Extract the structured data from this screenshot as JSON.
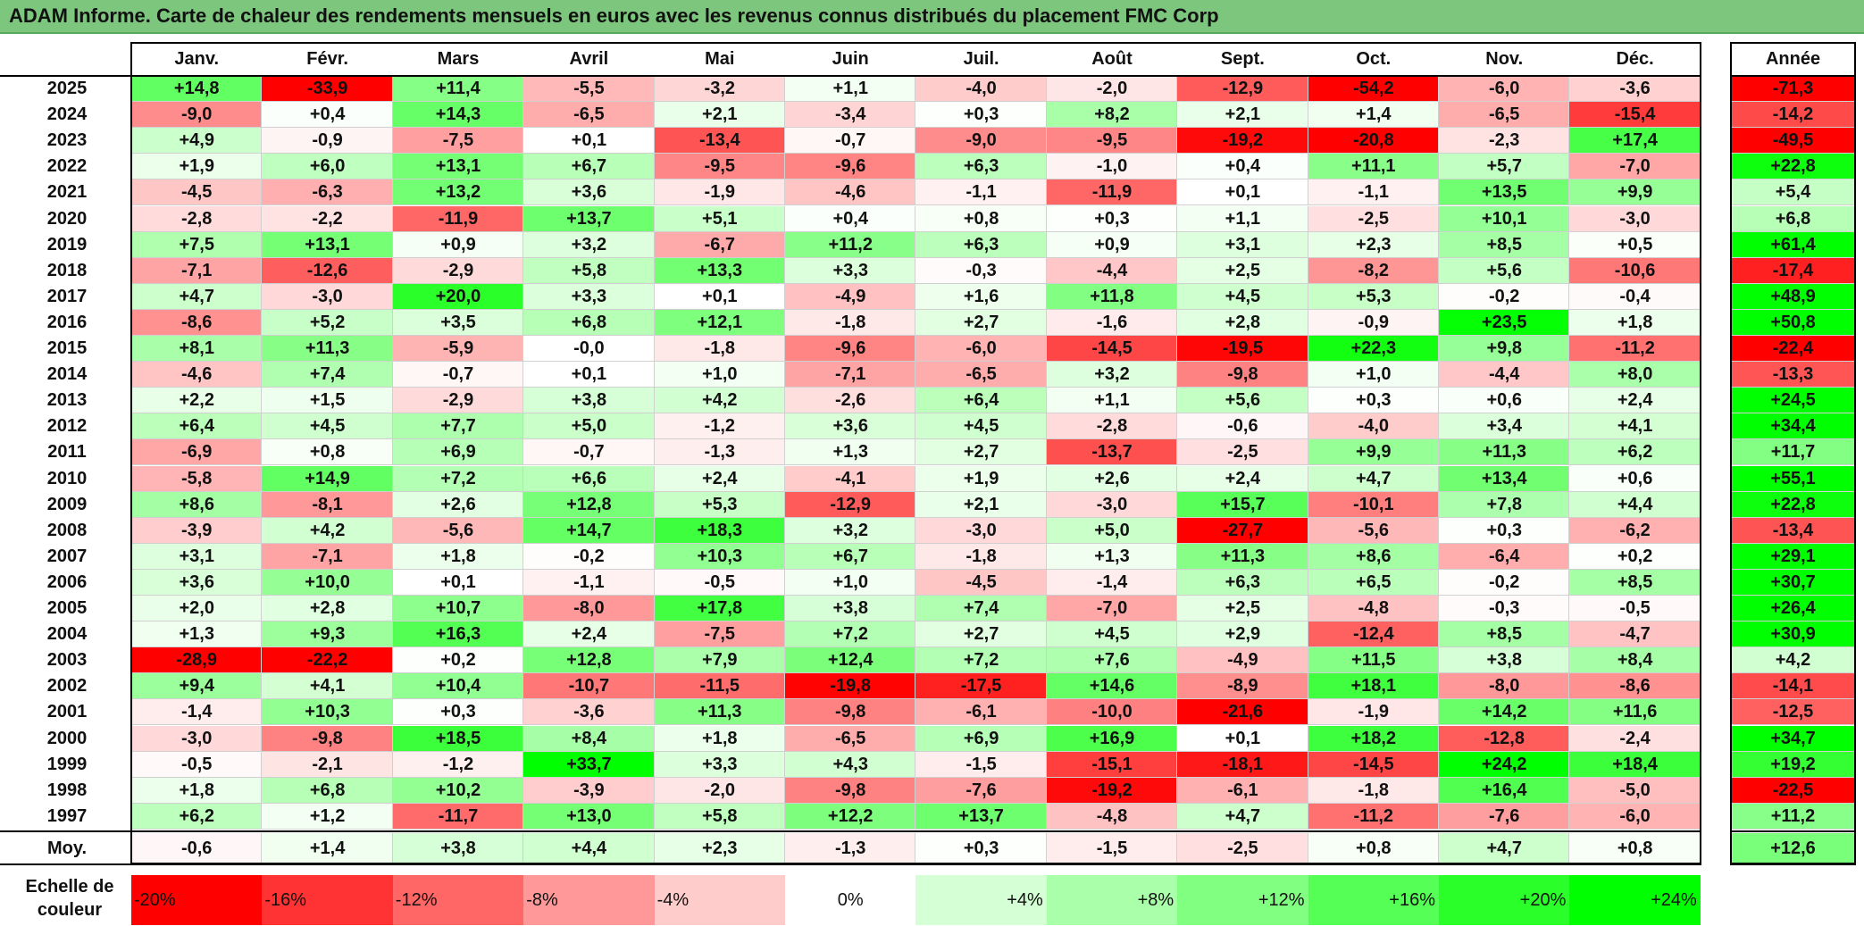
{
  "title": "ADAM Informe. Carte de chaleur des rendements mensuels en euros avec les revenus connus distribués du placement FMC Corp",
  "chart_data": {
    "type": "heatmap",
    "columns": [
      "Janv.",
      "Févr.",
      "Mars",
      "Avril",
      "Mai",
      "Juin",
      "Juil.",
      "Août",
      "Sept.",
      "Oct.",
      "Nov.",
      "Déc."
    ],
    "annual_header": "Année",
    "rows": [
      {
        "year": "2025",
        "values": [
          "+14,8",
          "-33,9",
          "+11,4",
          "-5,5",
          "-3,2",
          "+1,1",
          "-4,0",
          "-2,0",
          "-12,9",
          "-54,2",
          "-6,0",
          "-3,6"
        ],
        "annual": "-71,3"
      },
      {
        "year": "2024",
        "values": [
          "-9,0",
          "+0,4",
          "+14,3",
          "-6,5",
          "+2,1",
          "-3,4",
          "+0,3",
          "+8,2",
          "+2,1",
          "+1,4",
          "-6,5",
          "-15,4"
        ],
        "annual": "-14,2"
      },
      {
        "year": "2023",
        "values": [
          "+4,9",
          "-0,9",
          "-7,5",
          "+0,1",
          "-13,4",
          "-0,7",
          "-9,0",
          "-9,5",
          "-19,2",
          "-20,8",
          "-2,3",
          "+17,4"
        ],
        "annual": "-49,5"
      },
      {
        "year": "2022",
        "values": [
          "+1,9",
          "+6,0",
          "+13,1",
          "+6,7",
          "-9,5",
          "-9,6",
          "+6,3",
          "-1,0",
          "+0,4",
          "+11,1",
          "+5,7",
          "-7,0"
        ],
        "annual": "+22,8"
      },
      {
        "year": "2021",
        "values": [
          "-4,5",
          "-6,3",
          "+13,2",
          "+3,6",
          "-1,9",
          "-4,6",
          "-1,1",
          "-11,9",
          "+0,1",
          "-1,1",
          "+13,5",
          "+9,9"
        ],
        "annual": "+5,4"
      },
      {
        "year": "2020",
        "values": [
          "-2,8",
          "-2,2",
          "-11,9",
          "+13,7",
          "+5,1",
          "+0,4",
          "+0,8",
          "+0,3",
          "+1,1",
          "-2,5",
          "+10,1",
          "-3,0"
        ],
        "annual": "+6,8"
      },
      {
        "year": "2019",
        "values": [
          "+7,5",
          "+13,1",
          "+0,9",
          "+3,2",
          "-6,7",
          "+11,2",
          "+6,3",
          "+0,9",
          "+3,1",
          "+2,3",
          "+8,5",
          "+0,5"
        ],
        "annual": "+61,4"
      },
      {
        "year": "2018",
        "values": [
          "-7,1",
          "-12,6",
          "-2,9",
          "+5,8",
          "+13,3",
          "+3,3",
          "-0,3",
          "-4,4",
          "+2,5",
          "-8,2",
          "+5,6",
          "-10,6"
        ],
        "annual": "-17,4"
      },
      {
        "year": "2017",
        "values": [
          "+4,7",
          "-3,0",
          "+20,0",
          "+3,3",
          "+0,1",
          "-4,9",
          "+1,6",
          "+11,8",
          "+4,5",
          "+5,3",
          "-0,2",
          "-0,4"
        ],
        "annual": "+48,9"
      },
      {
        "year": "2016",
        "values": [
          "-8,6",
          "+5,2",
          "+3,5",
          "+6,8",
          "+12,1",
          "-1,8",
          "+2,7",
          "-1,6",
          "+2,8",
          "-0,9",
          "+23,5",
          "+1,8"
        ],
        "annual": "+50,8"
      },
      {
        "year": "2015",
        "values": [
          "+8,1",
          "+11,3",
          "-5,9",
          "-0,0",
          "-1,8",
          "-9,6",
          "-6,0",
          "-14,5",
          "-19,5",
          "+22,3",
          "+9,8",
          "-11,2"
        ],
        "annual": "-22,4"
      },
      {
        "year": "2014",
        "values": [
          "-4,6",
          "+7,4",
          "-0,7",
          "+0,1",
          "+1,0",
          "-7,1",
          "-6,5",
          "+3,2",
          "-9,8",
          "+1,0",
          "-4,4",
          "+8,0"
        ],
        "annual": "-13,3"
      },
      {
        "year": "2013",
        "values": [
          "+2,2",
          "+1,5",
          "-2,9",
          "+3,8",
          "+4,2",
          "-2,6",
          "+6,4",
          "+1,1",
          "+5,6",
          "+0,3",
          "+0,6",
          "+2,4"
        ],
        "annual": "+24,5"
      },
      {
        "year": "2012",
        "values": [
          "+6,4",
          "+4,5",
          "+7,7",
          "+5,0",
          "-1,2",
          "+3,6",
          "+4,5",
          "-2,8",
          "-0,6",
          "-4,0",
          "+3,4",
          "+4,1"
        ],
        "annual": "+34,4"
      },
      {
        "year": "2011",
        "values": [
          "-6,9",
          "+0,8",
          "+6,9",
          "-0,7",
          "-1,3",
          "+1,3",
          "+2,7",
          "-13,7",
          "-2,5",
          "+9,9",
          "+11,3",
          "+6,2"
        ],
        "annual": "+11,7"
      },
      {
        "year": "2010",
        "values": [
          "-5,8",
          "+14,9",
          "+7,2",
          "+6,6",
          "+2,4",
          "-4,1",
          "+1,9",
          "+2,6",
          "+2,4",
          "+4,7",
          "+13,4",
          "+0,6"
        ],
        "annual": "+55,1"
      },
      {
        "year": "2009",
        "values": [
          "+8,6",
          "-8,1",
          "+2,6",
          "+12,8",
          "+5,3",
          "-12,9",
          "+2,1",
          "-3,0",
          "+15,7",
          "-10,1",
          "+7,8",
          "+4,4"
        ],
        "annual": "+22,8"
      },
      {
        "year": "2008",
        "values": [
          "-3,9",
          "+4,2",
          "-5,6",
          "+14,7",
          "+18,3",
          "+3,2",
          "-3,0",
          "+5,0",
          "-27,7",
          "-5,6",
          "+0,3",
          "-6,2"
        ],
        "annual": "-13,4"
      },
      {
        "year": "2007",
        "values": [
          "+3,1",
          "-7,1",
          "+1,8",
          "-0,2",
          "+10,3",
          "+6,7",
          "-1,8",
          "+1,3",
          "+11,3",
          "+8,6",
          "-6,4",
          "+0,2"
        ],
        "annual": "+29,1"
      },
      {
        "year": "2006",
        "values": [
          "+3,6",
          "+10,0",
          "+0,1",
          "-1,1",
          "-0,5",
          "+1,0",
          "-4,5",
          "-1,4",
          "+6,3",
          "+6,5",
          "-0,2",
          "+8,5"
        ],
        "annual": "+30,7"
      },
      {
        "year": "2005",
        "values": [
          "+2,0",
          "+2,8",
          "+10,7",
          "-8,0",
          "+17,8",
          "+3,8",
          "+7,4",
          "-7,0",
          "+2,5",
          "-4,8",
          "-0,3",
          "-0,5"
        ],
        "annual": "+26,4"
      },
      {
        "year": "2004",
        "values": [
          "+1,3",
          "+9,3",
          "+16,3",
          "+2,4",
          "-7,5",
          "+7,2",
          "+2,7",
          "+4,5",
          "+2,9",
          "-12,4",
          "+8,5",
          "-4,7"
        ],
        "annual": "+30,9"
      },
      {
        "year": "2003",
        "values": [
          "-28,9",
          "-22,2",
          "+0,2",
          "+12,8",
          "+7,9",
          "+12,4",
          "+7,2",
          "+7,6",
          "-4,9",
          "+11,5",
          "+3,8",
          "+8,4"
        ],
        "annual": "+4,2"
      },
      {
        "year": "2002",
        "values": [
          "+9,4",
          "+4,1",
          "+10,4",
          "-10,7",
          "-11,5",
          "-19,8",
          "-17,5",
          "+14,6",
          "-8,9",
          "+18,1",
          "-8,0",
          "-8,6"
        ],
        "annual": "-14,1"
      },
      {
        "year": "2001",
        "values": [
          "-1,4",
          "+10,3",
          "+0,3",
          "-3,6",
          "+11,3",
          "-9,8",
          "-6,1",
          "-10,0",
          "-21,6",
          "-1,9",
          "+14,2",
          "+11,6"
        ],
        "annual": "-12,5"
      },
      {
        "year": "2000",
        "values": [
          "-3,0",
          "-9,8",
          "+18,5",
          "+8,4",
          "+1,8",
          "-6,5",
          "+6,9",
          "+16,9",
          "+0,1",
          "+18,2",
          "-12,8",
          "-2,4"
        ],
        "annual": "+34,7"
      },
      {
        "year": "1999",
        "values": [
          "-0,5",
          "-2,1",
          "-1,2",
          "+33,7",
          "+3,3",
          "+4,3",
          "-1,5",
          "-15,1",
          "-18,1",
          "-14,5",
          "+24,2",
          "+18,4"
        ],
        "annual": "+19,2"
      },
      {
        "year": "1998",
        "values": [
          "+1,8",
          "+6,8",
          "+10,2",
          "-3,9",
          "-2,0",
          "-9,8",
          "-7,6",
          "-19,2",
          "-6,1",
          "-1,8",
          "+16,4",
          "-5,0"
        ],
        "annual": "-22,5"
      },
      {
        "year": "1997",
        "values": [
          "+6,2",
          "+1,2",
          "-11,7",
          "+13,0",
          "+5,8",
          "+12,2",
          "+13,7",
          "-4,8",
          "+4,7",
          "-11,2",
          "-7,6",
          "-6,0"
        ],
        "annual": "+11,2"
      }
    ],
    "average": {
      "label": "Moy.",
      "values": [
        "-0,6",
        "+1,4",
        "+3,8",
        "+4,4",
        "+2,3",
        "-1,3",
        "+0,3",
        "-1,5",
        "-2,5",
        "+0,8",
        "+4,7",
        "+0,8"
      ],
      "annual": "+12,6"
    },
    "scale": {
      "label": "Echelle de couleur",
      "steps": [
        {
          "label": "-20%",
          "value": -20,
          "color": "#ff0000"
        },
        {
          "label": "-16%",
          "value": -16,
          "color": "#ff3333"
        },
        {
          "label": "-12%",
          "value": -12,
          "color": "#ff6666"
        },
        {
          "label": "-8%",
          "value": -8,
          "color": "#ff9999"
        },
        {
          "label": "-4%",
          "value": -4,
          "color": "#ffcccc"
        },
        {
          "label": "0%",
          "value": 0,
          "color": "#ffffff"
        },
        {
          "label": "+4%",
          "value": 4,
          "color": "#d5ffd5"
        },
        {
          "label": "+8%",
          "value": 8,
          "color": "#aaffaa"
        },
        {
          "label": "+12%",
          "value": 12,
          "color": "#80ff80"
        },
        {
          "label": "+16%",
          "value": 16,
          "color": "#55ff55"
        },
        {
          "label": "+20%",
          "value": 20,
          "color": "#2aff2a"
        },
        {
          "label": "+24%",
          "value": 24,
          "color": "#00ff00"
        }
      ]
    }
  }
}
